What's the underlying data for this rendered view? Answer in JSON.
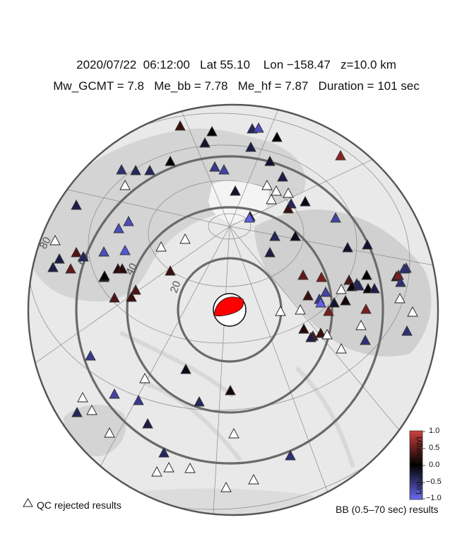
{
  "header": {
    "line1": "2020/07/22  06:12:00   Lat 55.10    Lon −158.47   z=10.0 km",
    "line2": "Mw_GCMT = 7.8   Me_bb = 7.78   Me_hf = 7.87   Duration = 101 sec"
  },
  "map": {
    "projection": "azimuthal-equidistant",
    "distance_rings": [
      "20",
      "40",
      "60",
      "80"
    ],
    "mechanism_color": "#ff0000"
  },
  "legend": {
    "qc_label": "QC rejected results",
    "bb_label": "BB (0.5–70 sec) results"
  },
  "colorbar": {
    "title": "Log₁₀ (Δ Energy)",
    "ticks": [
      "1.0",
      "0.5",
      "0.0",
      "−0.5",
      "−1.0"
    ],
    "range": [
      -1.0,
      1.0
    ],
    "colors": {
      "high": "#c03030",
      "mid": "#000000",
      "low": "#5a5ae8"
    }
  },
  "stations": [
    {
      "v": 0.3
    },
    {
      "v": 0.0
    },
    {
      "v": -0.4
    },
    {
      "v": -0.8
    },
    {
      "v": 0.0
    },
    {
      "v": 0.7
    },
    {
      "v": -0.2
    },
    {
      "v": -0.3
    },
    {
      "v": -0.2
    },
    {
      "v": -0.5
    },
    {
      "v": -0.4
    },
    {
      "v": -0.4
    },
    {
      "v": null
    },
    {
      "v": 0.0
    },
    {
      "v": -0.6
    },
    {
      "v": -0.7
    },
    {
      "v": -0.3
    },
    {
      "v": null
    },
    {
      "v": null
    },
    {
      "v": -0.2
    },
    {
      "v": null
    },
    {
      "v": -0.4
    },
    {
      "v": null
    },
    {
      "v": 0.3
    },
    {
      "v": -0.1
    },
    {
      "v": -0.3
    },
    {
      "v": -0.8
    },
    {
      "v": -0.8
    },
    {
      "v": -0.2
    },
    {
      "v": -0.7
    },
    {
      "v": -1.0
    },
    {
      "v": null
    },
    {
      "v": null
    },
    {
      "v": -0.4
    },
    {
      "v": -0.1
    },
    {
      "v": -0.3
    },
    {
      "v": -0.2
    },
    {
      "v": -0.2
    },
    {
      "v": 0.4
    },
    {
      "v": -0.4
    },
    {
      "v": -0.3
    },
    {
      "v": -0.8
    },
    {
      "v": null
    },
    {
      "v": -0.3
    },
    {
      "v": -0.9
    },
    {
      "v": -0.1
    },
    {
      "v": 0.2
    },
    {
      "v": 0.2
    },
    {
      "v": 0.5
    },
    {
      "v": 0.4
    },
    {
      "v": 0.0
    },
    {
      "v": 0.3
    },
    {
      "v": 0.4
    },
    {
      "v": 0.3
    },
    {
      "v": 0.5
    },
    {
      "v": 0.6
    },
    {
      "v": 0.4
    },
    {
      "v": -0.4
    },
    {
      "v": 0.0
    },
    {
      "v": 0.2
    },
    {
      "v": 0.6
    },
    {
      "v": -0.5
    },
    {
      "v": 0.1
    },
    {
      "v": -0.5
    },
    {
      "v": 0.0
    },
    {
      "v": -0.3
    },
    {
      "v": -0.2
    },
    {
      "v": 0.1
    },
    {
      "v": -0.7
    },
    {
      "v": -0.6
    },
    {
      "v": -1.0
    },
    {
      "v": null
    },
    {
      "v": null
    },
    {
      "v": -0.4
    },
    {
      "v": null
    },
    {
      "v": 0.3
    },
    {
      "v": null
    },
    {
      "v": null
    },
    {
      "v": 0.6
    },
    {
      "v": 0.6
    },
    {
      "v": 0.2
    },
    {
      "v": 0.4
    },
    {
      "v": 0.3
    },
    {
      "v": null
    },
    {
      "v": null
    },
    {
      "v": null
    },
    {
      "v": -0.5
    },
    {
      "v": -0.5
    },
    {
      "v": -0.5
    },
    {
      "v": -0.3
    },
    {
      "v": -0.6
    },
    {
      "v": null
    },
    {
      "v": null
    },
    {
      "v": null
    },
    {
      "v": null
    },
    {
      "v": -0.4
    },
    {
      "v": -0.4
    },
    {
      "v": -0.5
    },
    {
      "v": -0.7
    },
    {
      "v": -0.6
    },
    {
      "v": -0.3
    },
    {
      "v": -0.4
    },
    {
      "v": -0.1
    },
    {
      "v": 0.1
    },
    {
      "v": -0.9
    },
    {
      "v": -0.2
    },
    {
      "v": -0.5
    },
    {
      "v": 0.2
    }
  ]
}
